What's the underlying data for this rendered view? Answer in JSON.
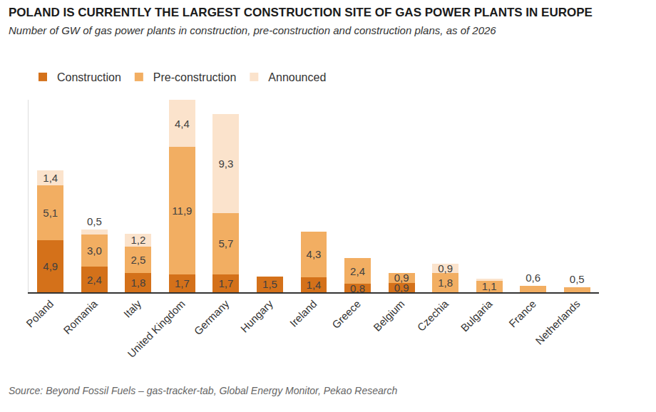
{
  "chart_data": {
    "type": "bar",
    "title": "POLAND IS CURRENTLY THE LARGEST CONSTRUCTION SITE OF GAS POWER PLANTS IN EUROPE",
    "subtitle": "Number of GW of gas power plants in construction, pre-construction and construction plans, as of 2026",
    "annotations": [
      "Source: Beyond Fossil Fuels – gas-tracker-tab, Global Energy Monitor, Pekao Research"
    ],
    "categories": [
      "Poland",
      "Romania",
      "Italy",
      "United Kingdom",
      "Germany",
      "Hungary",
      "Ireland",
      "Greece",
      "Belgium",
      "Czechia",
      "Bulgaria",
      "France",
      "Netherlands"
    ],
    "series": [
      {
        "name": "Construction",
        "color": "#d4711a",
        "values": [
          4.9,
          2.4,
          1.8,
          1.7,
          1.7,
          1.5,
          1.4,
          0.8,
          0.9,
          null,
          null,
          null,
          null
        ],
        "value_labels": [
          "4,9",
          "2,4",
          "1,8",
          "1,7",
          "1,7",
          "1,5",
          "1,4",
          "0,8",
          "0,9",
          null,
          null,
          null,
          null
        ]
      },
      {
        "name": "Pre-construction",
        "color": "#f2ae62",
        "values": [
          5.1,
          3.0,
          2.5,
          11.9,
          5.7,
          null,
          4.3,
          2.4,
          0.9,
          1.8,
          1.1,
          0.6,
          0.5
        ],
        "value_labels": [
          "5,1",
          "3,0",
          "2,5",
          "11,9",
          "5,7",
          null,
          "4,3",
          "2,4",
          "0,9",
          "1,8",
          "1,1",
          "0,6",
          "0,5"
        ]
      },
      {
        "name": "Announced",
        "color": "#fbe3cc",
        "values": [
          1.4,
          0.5,
          1.2,
          4.4,
          9.3,
          null,
          null,
          null,
          null,
          0.9,
          0.2,
          null,
          null
        ],
        "value_labels": [
          "1,4",
          "0,5",
          "1,2",
          "4,4",
          "9,3",
          null,
          null,
          null,
          null,
          "0,9",
          null,
          null,
          null
        ]
      }
    ],
    "stacked": true,
    "data_labels": true,
    "legend": "top-left",
    "tick_labels": "x",
    "grid": false,
    "ylim": [
      0,
      18
    ],
    "yticks": []
  }
}
